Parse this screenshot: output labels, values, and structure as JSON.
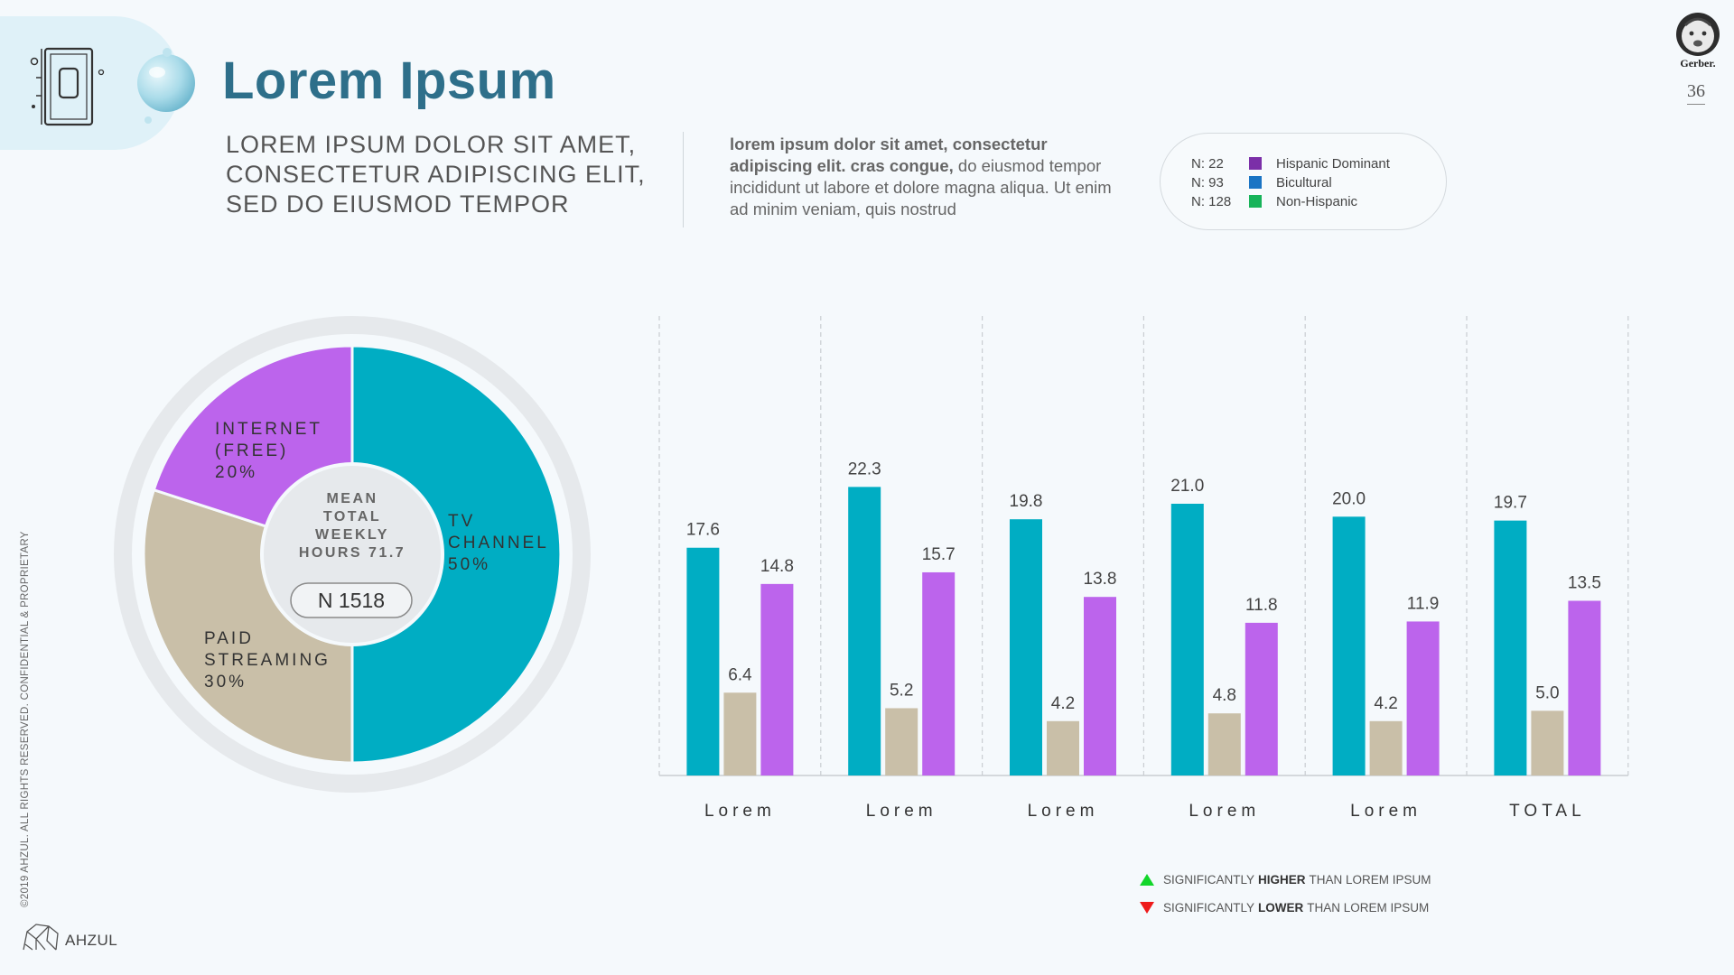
{
  "header": {
    "title": "Lorem Ipsum",
    "subtitle_lines": [
      "LOREM IPSUM DOLOR SIT AMET,",
      "CONSECTETUR ADIPISCING ELIT,",
      "SED DO EIUSMOD TEMPOR"
    ],
    "description_bold": "lorem ipsum dolor sit amet, consectetur adipiscing elit. cras congue,",
    "description_rest": " do eiusmod tempor incididunt ut labore et dolore magna aliqua. Ut enim ad minim veniam, quis nostrud",
    "page_number": "36",
    "brand_logo_text": "Gerber."
  },
  "legend": [
    {
      "n": "N: 22",
      "label": "Hispanic Dominant",
      "color": "#7b2fa8"
    },
    {
      "n": "N: 93",
      "label": "Bicultural",
      "color": "#1a74c4"
    },
    {
      "n": "N: 128",
      "label": "Non-Hispanic",
      "color": "#17b359"
    }
  ],
  "significance": {
    "higher_pre": "SIGNIFICANTLY",
    "higher_word": "HIGHER",
    "higher_post": "THAN LOREM IPSUM",
    "lower_pre": "SIGNIFICANTLY",
    "lower_word": "LOWER",
    "lower_post": "THAN LOREM IPSUM"
  },
  "footer": {
    "copyright": "©2019 AHZUL. ALL RIGHTS RESERVED. CONFIDENTIAL & PROPRIETARY",
    "brand": "AHZUL"
  },
  "chart_data": [
    {
      "type": "pie",
      "center_label_lines": [
        "MEAN",
        "TOTAL",
        "WEEKLY",
        "HOURS 71.7"
      ],
      "n_label": "N 1518",
      "slices": [
        {
          "label_lines": [
            "TV",
            "CHANNEL",
            "50%"
          ],
          "value": 50,
          "color": "#00adc3"
        },
        {
          "label_lines": [
            "PAID",
            "STREAMING",
            "30%"
          ],
          "value": 30,
          "color": "#c9bfa8"
        },
        {
          "label_lines": [
            "INTERNET",
            "(FREE)",
            "20%"
          ],
          "value": 20,
          "color": "#bc64ec"
        }
      ]
    },
    {
      "type": "bar",
      "categories": [
        "Lorem",
        "Lorem",
        "Lorem",
        "Lorem",
        "Lorem",
        "TOTAL"
      ],
      "series": [
        {
          "values": [
            17.6,
            22.3,
            19.8,
            21.0,
            20.0,
            19.7
          ],
          "color": "#00adc3"
        },
        {
          "values": [
            6.4,
            5.2,
            4.2,
            4.8,
            4.2,
            5.0
          ],
          "color": "#c9bfa8"
        },
        {
          "values": [
            14.8,
            15.7,
            13.8,
            11.8,
            11.9,
            13.5
          ],
          "color": "#bc64ec"
        }
      ],
      "value_labels": [
        [
          "17.6",
          "22.3",
          "19.8",
          "21.0",
          "20.0",
          "19.7"
        ],
        [
          "6.4",
          "5.2",
          "4.2",
          "4.8",
          "4.2",
          "5.0"
        ],
        [
          "14.8",
          "15.7",
          "13.8",
          "11.8",
          "11.9",
          "13.5"
        ]
      ],
      "ylim": [
        0,
        30
      ],
      "grid": false
    }
  ]
}
